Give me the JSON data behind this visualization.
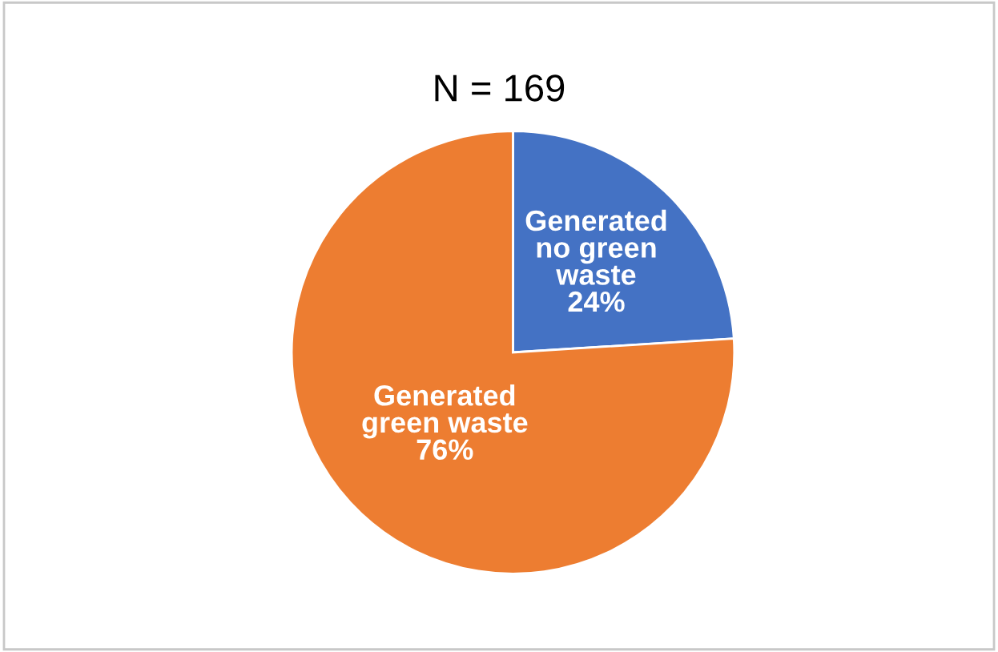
{
  "chart_data": {
    "type": "pie",
    "title": "N = 169",
    "categories": [
      "Generated no green waste",
      "Generated green waste"
    ],
    "values": [
      24,
      76
    ],
    "colors": [
      "#4472c4",
      "#ed7d31"
    ],
    "value_labels": [
      "24%",
      "76%"
    ]
  }
}
